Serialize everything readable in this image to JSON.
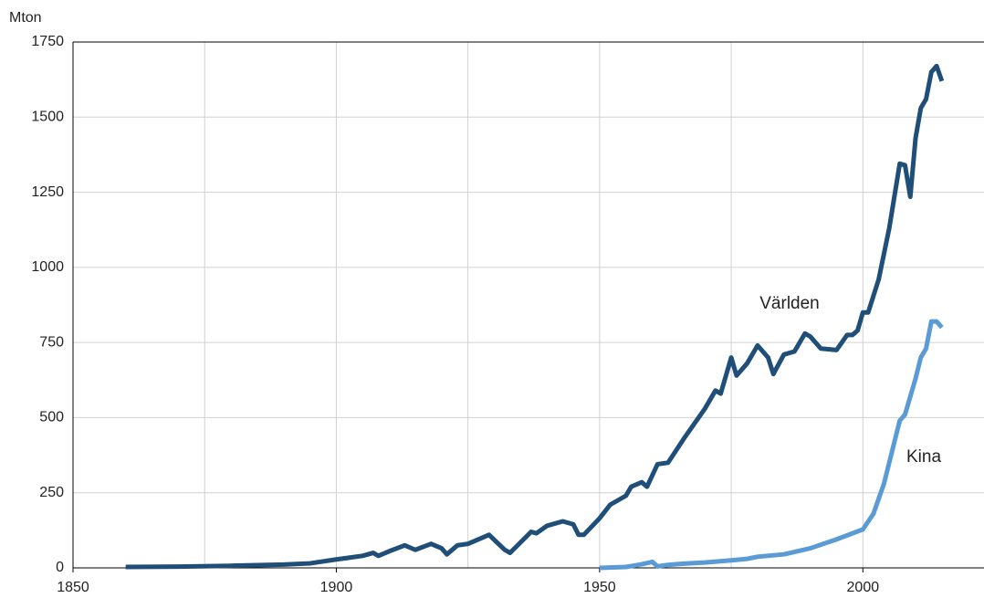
{
  "chart_data": {
    "type": "line",
    "y_label": "Mton",
    "xlim": [
      1850,
      2023
    ],
    "ylim": [
      0,
      1750
    ],
    "xticks": [
      1850,
      1900,
      1950,
      2000
    ],
    "xminorticks": [
      1875,
      1925,
      1975
    ],
    "yticks": [
      0,
      250,
      500,
      750,
      1000,
      1250,
      1500,
      1750
    ],
    "grid": true,
    "series": [
      {
        "name": "Världen",
        "color": "#1f4e79",
        "x": [
          1860,
          1870,
          1880,
          1890,
          1895,
          1900,
          1905,
          1907,
          1908,
          1910,
          1913,
          1915,
          1918,
          1920,
          1921,
          1923,
          1925,
          1929,
          1932,
          1933,
          1937,
          1938,
          1940,
          1943,
          1945,
          1946,
          1947,
          1950,
          1952,
          1955,
          1956,
          1958,
          1959,
          1961,
          1963,
          1966,
          1970,
          1972,
          1973,
          1975,
          1976,
          1978,
          1980,
          1982,
          1983,
          1985,
          1987,
          1989,
          1990,
          1992,
          1995,
          1997,
          1998,
          1999,
          2000,
          2001,
          2003,
          2005,
          2007,
          2008,
          2009,
          2010,
          2011,
          2012,
          2013,
          2014,
          2015
        ],
        "values": [
          3,
          4,
          7,
          11,
          15,
          28,
          40,
          50,
          40,
          55,
          75,
          60,
          80,
          65,
          45,
          75,
          80,
          110,
          60,
          50,
          120,
          115,
          140,
          155,
          145,
          110,
          110,
          165,
          210,
          240,
          270,
          285,
          270,
          345,
          350,
          430,
          530,
          590,
          580,
          700,
          640,
          680,
          740,
          700,
          645,
          710,
          720,
          780,
          770,
          730,
          725,
          775,
          775,
          790,
          850,
          850,
          960,
          1130,
          1345,
          1340,
          1235,
          1430,
          1530,
          1560,
          1650,
          1670,
          1620
        ]
      },
      {
        "name": "Kina",
        "color": "#5b9bd5",
        "x": [
          1950,
          1955,
          1958,
          1960,
          1961,
          1963,
          1966,
          1970,
          1975,
          1978,
          1980,
          1985,
          1990,
          1995,
          2000,
          2002,
          2004,
          2006,
          2007,
          2008,
          2010,
          2011,
          2012,
          2013,
          2014,
          2015
        ],
        "values": [
          0,
          3,
          12,
          20,
          5,
          10,
          14,
          18,
          25,
          30,
          37,
          45,
          65,
          95,
          128,
          180,
          280,
          420,
          490,
          510,
          630,
          700,
          730,
          820,
          820,
          800
        ]
      }
    ]
  }
}
